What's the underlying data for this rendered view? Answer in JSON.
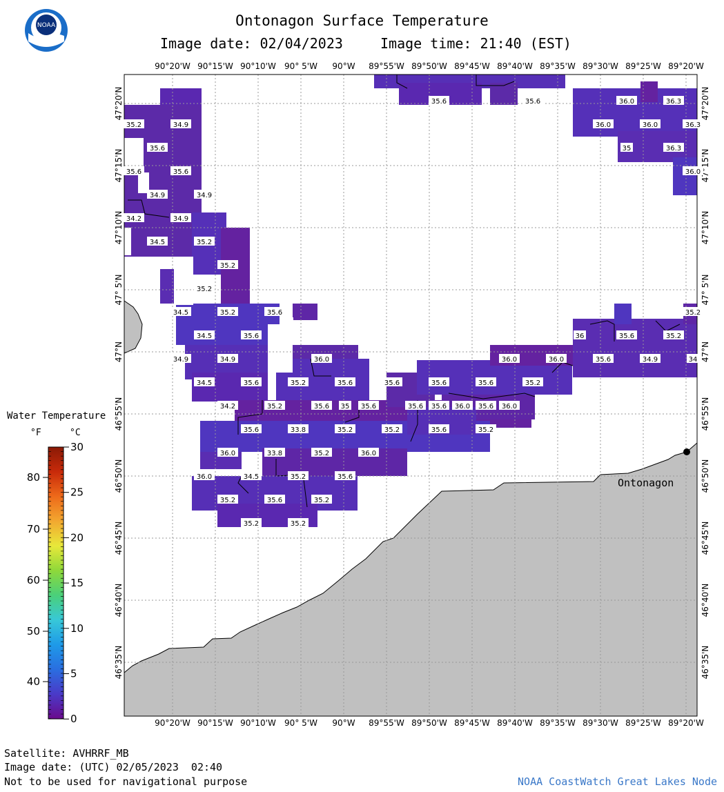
{
  "header": {
    "title": "Ontonagon Surface Temperature",
    "image_date_label": "Image date: 02/04/2023",
    "image_time_label": "Image time: 21:40 (EST)"
  },
  "logo": {
    "text": "NOAA"
  },
  "map": {
    "lon_labels": [
      "90°20'W",
      "90°15'W",
      "90°10'W",
      "90° 5'W",
      "90°W",
      "89°55'W",
      "89°50'W",
      "89°45'W",
      "89°40'W",
      "89°35'W",
      "89°30'W",
      "89°25'W",
      "89°20'W"
    ],
    "lat_labels": [
      "47°20'N",
      "47°15'N",
      "47°10'N",
      "47° 5'N",
      "47°N",
      "46°55'N",
      "46°50'N",
      "46°45'N",
      "46°40'N",
      "46°35'N"
    ],
    "place_label": "Ontonagon",
    "temp_labels": [
      "35.2",
      "34.9",
      "35.6",
      "35.6",
      "35.6",
      "34.9",
      "34.9",
      "34.2",
      "34.9",
      "34.5",
      "35.2",
      "35.2",
      "35.2",
      "34.5",
      "35.2",
      "35.6",
      "34.5",
      "35.6",
      "34.9",
      "34.9",
      "36.0",
      "34.5",
      "35.6",
      "35.6",
      "35.6",
      "35.6",
      "34.2",
      "35.2",
      "35.6",
      "35.6",
      "35.6",
      "35.6",
      "33.8",
      "35.2",
      "35.2",
      "36.0",
      "33.8",
      "35.2",
      "35.6",
      "36.0",
      "34.5",
      "35.2",
      "35.6",
      "35.2",
      "35.6",
      "35.2",
      "35.2",
      "35.2",
      "35.6",
      "35.6",
      "36.0",
      "36.3",
      "36.0",
      "36.0",
      "36.3",
      "35",
      "36.3",
      "36.0",
      "36",
      "35.6",
      "35.6",
      "35.6",
      "35.2",
      "36.0",
      "36.0",
      "35.6",
      "34.9",
      "34",
      "35.6",
      "35.6",
      "36.0",
      "36.0",
      "35.6",
      "35.2",
      "35.2",
      "35.2",
      "35.2",
      "35",
      "35.6",
      "35.2",
      "36.0",
      "35.6"
    ]
  },
  "legend": {
    "title": "Water Temperature",
    "unit_f": "°F",
    "unit_c": "°C",
    "f_ticks": [
      "80",
      "70",
      "60",
      "50",
      "40"
    ],
    "c_ticks": [
      "30",
      "25",
      "20",
      "15",
      "10",
      "5",
      "0"
    ],
    "colors": [
      "#6a0a8c",
      "#4a3ac8",
      "#2a6ee0",
      "#1e9ae8",
      "#38c8d8",
      "#4ad07a",
      "#8ed83a",
      "#e8e83a",
      "#f2a830",
      "#ee6a1a",
      "#c82a0a",
      "#8a1a06"
    ]
  },
  "footer": {
    "satellite": "Satellite: AVHRRF_MB",
    "utc_date": "Image date: (UTC) 02/05/2023  02:40",
    "disclaimer": "Not to be used for navigational purpose",
    "credit": "NOAA CoastWatch Great Lakes Node"
  }
}
